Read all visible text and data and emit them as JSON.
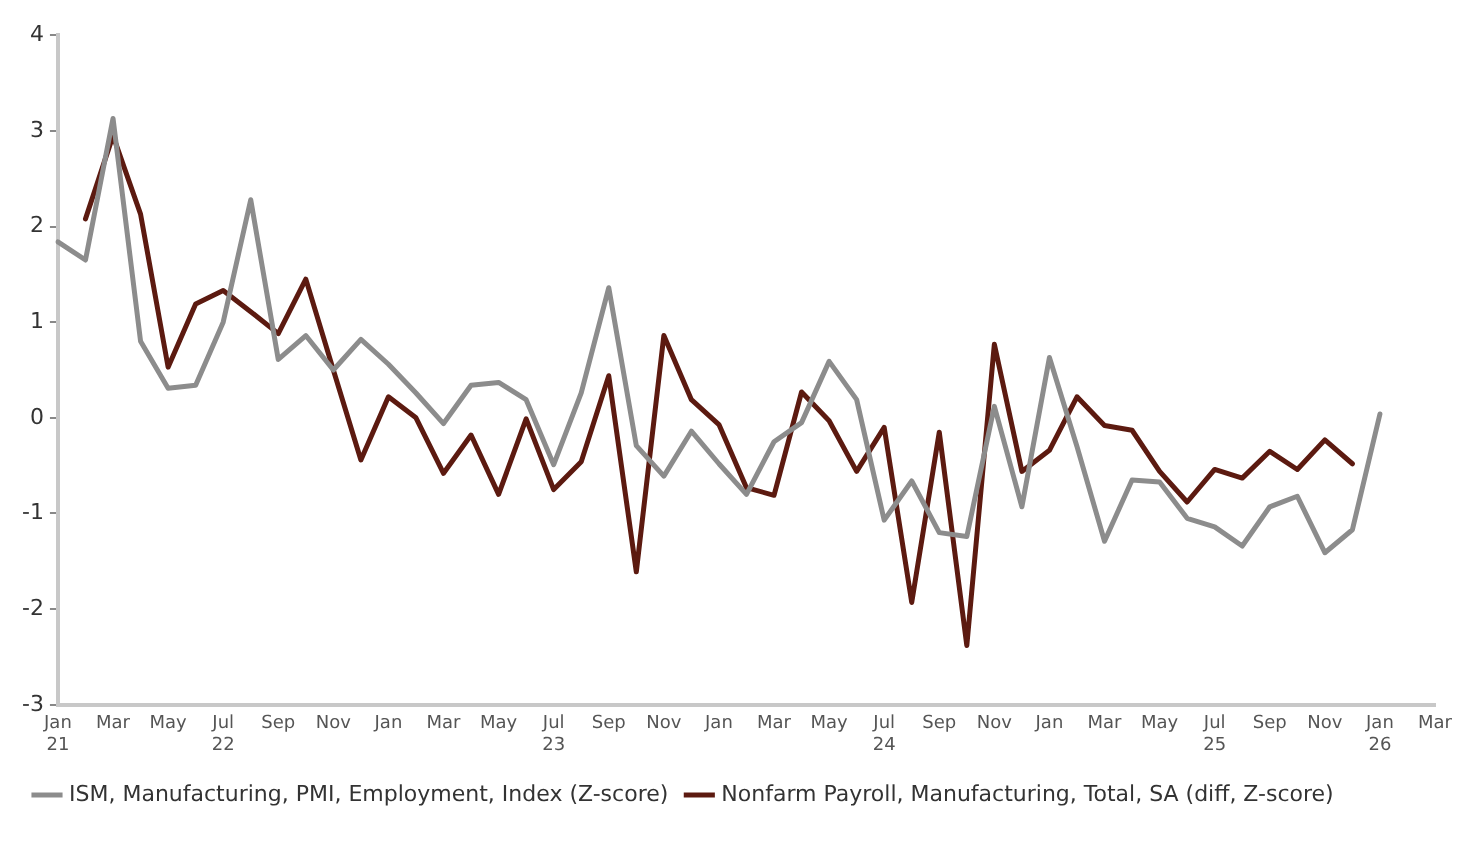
{
  "chart_data": {
    "type": "line",
    "categories": [
      "Jan\n21",
      null,
      "Mar",
      null,
      "May",
      null,
      "Jul\n22",
      null,
      "Sep",
      null,
      "Nov",
      null,
      "Jan",
      null,
      "Mar",
      null,
      "May",
      null,
      "Jul\n23",
      null,
      "Sep",
      null,
      "Nov",
      null,
      "Jan",
      null,
      "Mar",
      null,
      "May",
      null,
      "Jul\n24",
      null,
      "Sep",
      null,
      "Nov",
      null,
      "Jan",
      null,
      "Mar",
      null,
      "May",
      null,
      "Jul\n25",
      null,
      "Sep",
      null,
      "Nov",
      null,
      "Jan\n26",
      null,
      "Mar"
    ],
    "series": [
      {
        "name": "ISM, Manufacturing, PMI, Employment, Index (Z-score)",
        "color": "#8c8c8c",
        "values": [
          1.84,
          1.65,
          3.13,
          0.8,
          0.31,
          0.34,
          1.0,
          2.28,
          0.61,
          0.86,
          0.5,
          0.82,
          0.56,
          0.26,
          -0.06,
          0.34,
          0.37,
          0.19,
          -0.49,
          0.26,
          1.36,
          -0.29,
          -0.61,
          -0.14,
          -0.48,
          -0.8,
          -0.25,
          -0.05,
          0.59,
          0.19,
          -1.07,
          -0.66,
          -1.2,
          -1.24,
          0.12,
          -0.93,
          0.63,
          -0.3,
          -1.29,
          -0.65,
          -0.67,
          -1.05,
          -1.14,
          -1.34,
          -0.93,
          -0.82,
          -1.41,
          -1.17,
          0.04,
          null,
          null
        ]
      },
      {
        "name": "Nonfarm Payroll, Manufacturing, Total, SA (diff, Z-score)",
        "color": "#5c1a10",
        "values": [
          null,
          2.08,
          2.95,
          2.13,
          0.53,
          1.19,
          1.33,
          1.11,
          0.88,
          1.45,
          0.5,
          -0.44,
          0.22,
          0.0,
          -0.58,
          -0.18,
          -0.8,
          -0.01,
          -0.75,
          -0.46,
          0.44,
          -1.61,
          0.86,
          0.19,
          -0.07,
          -0.73,
          -0.81,
          0.27,
          -0.03,
          -0.56,
          -0.1,
          -1.93,
          -0.15,
          -2.38,
          0.77,
          -0.56,
          -0.34,
          0.22,
          -0.08,
          -0.13,
          -0.56,
          -0.88,
          -0.54,
          -0.63,
          -0.35,
          -0.54,
          -0.23,
          -0.48,
          null,
          null,
          null
        ]
      }
    ],
    "ylim": [
      -3,
      4
    ],
    "yticks": [
      -3,
      -2,
      -1,
      0,
      1,
      2,
      3,
      4
    ],
    "grid": false,
    "legend": "bottom",
    "line_style": "solid",
    "marker": "none"
  }
}
